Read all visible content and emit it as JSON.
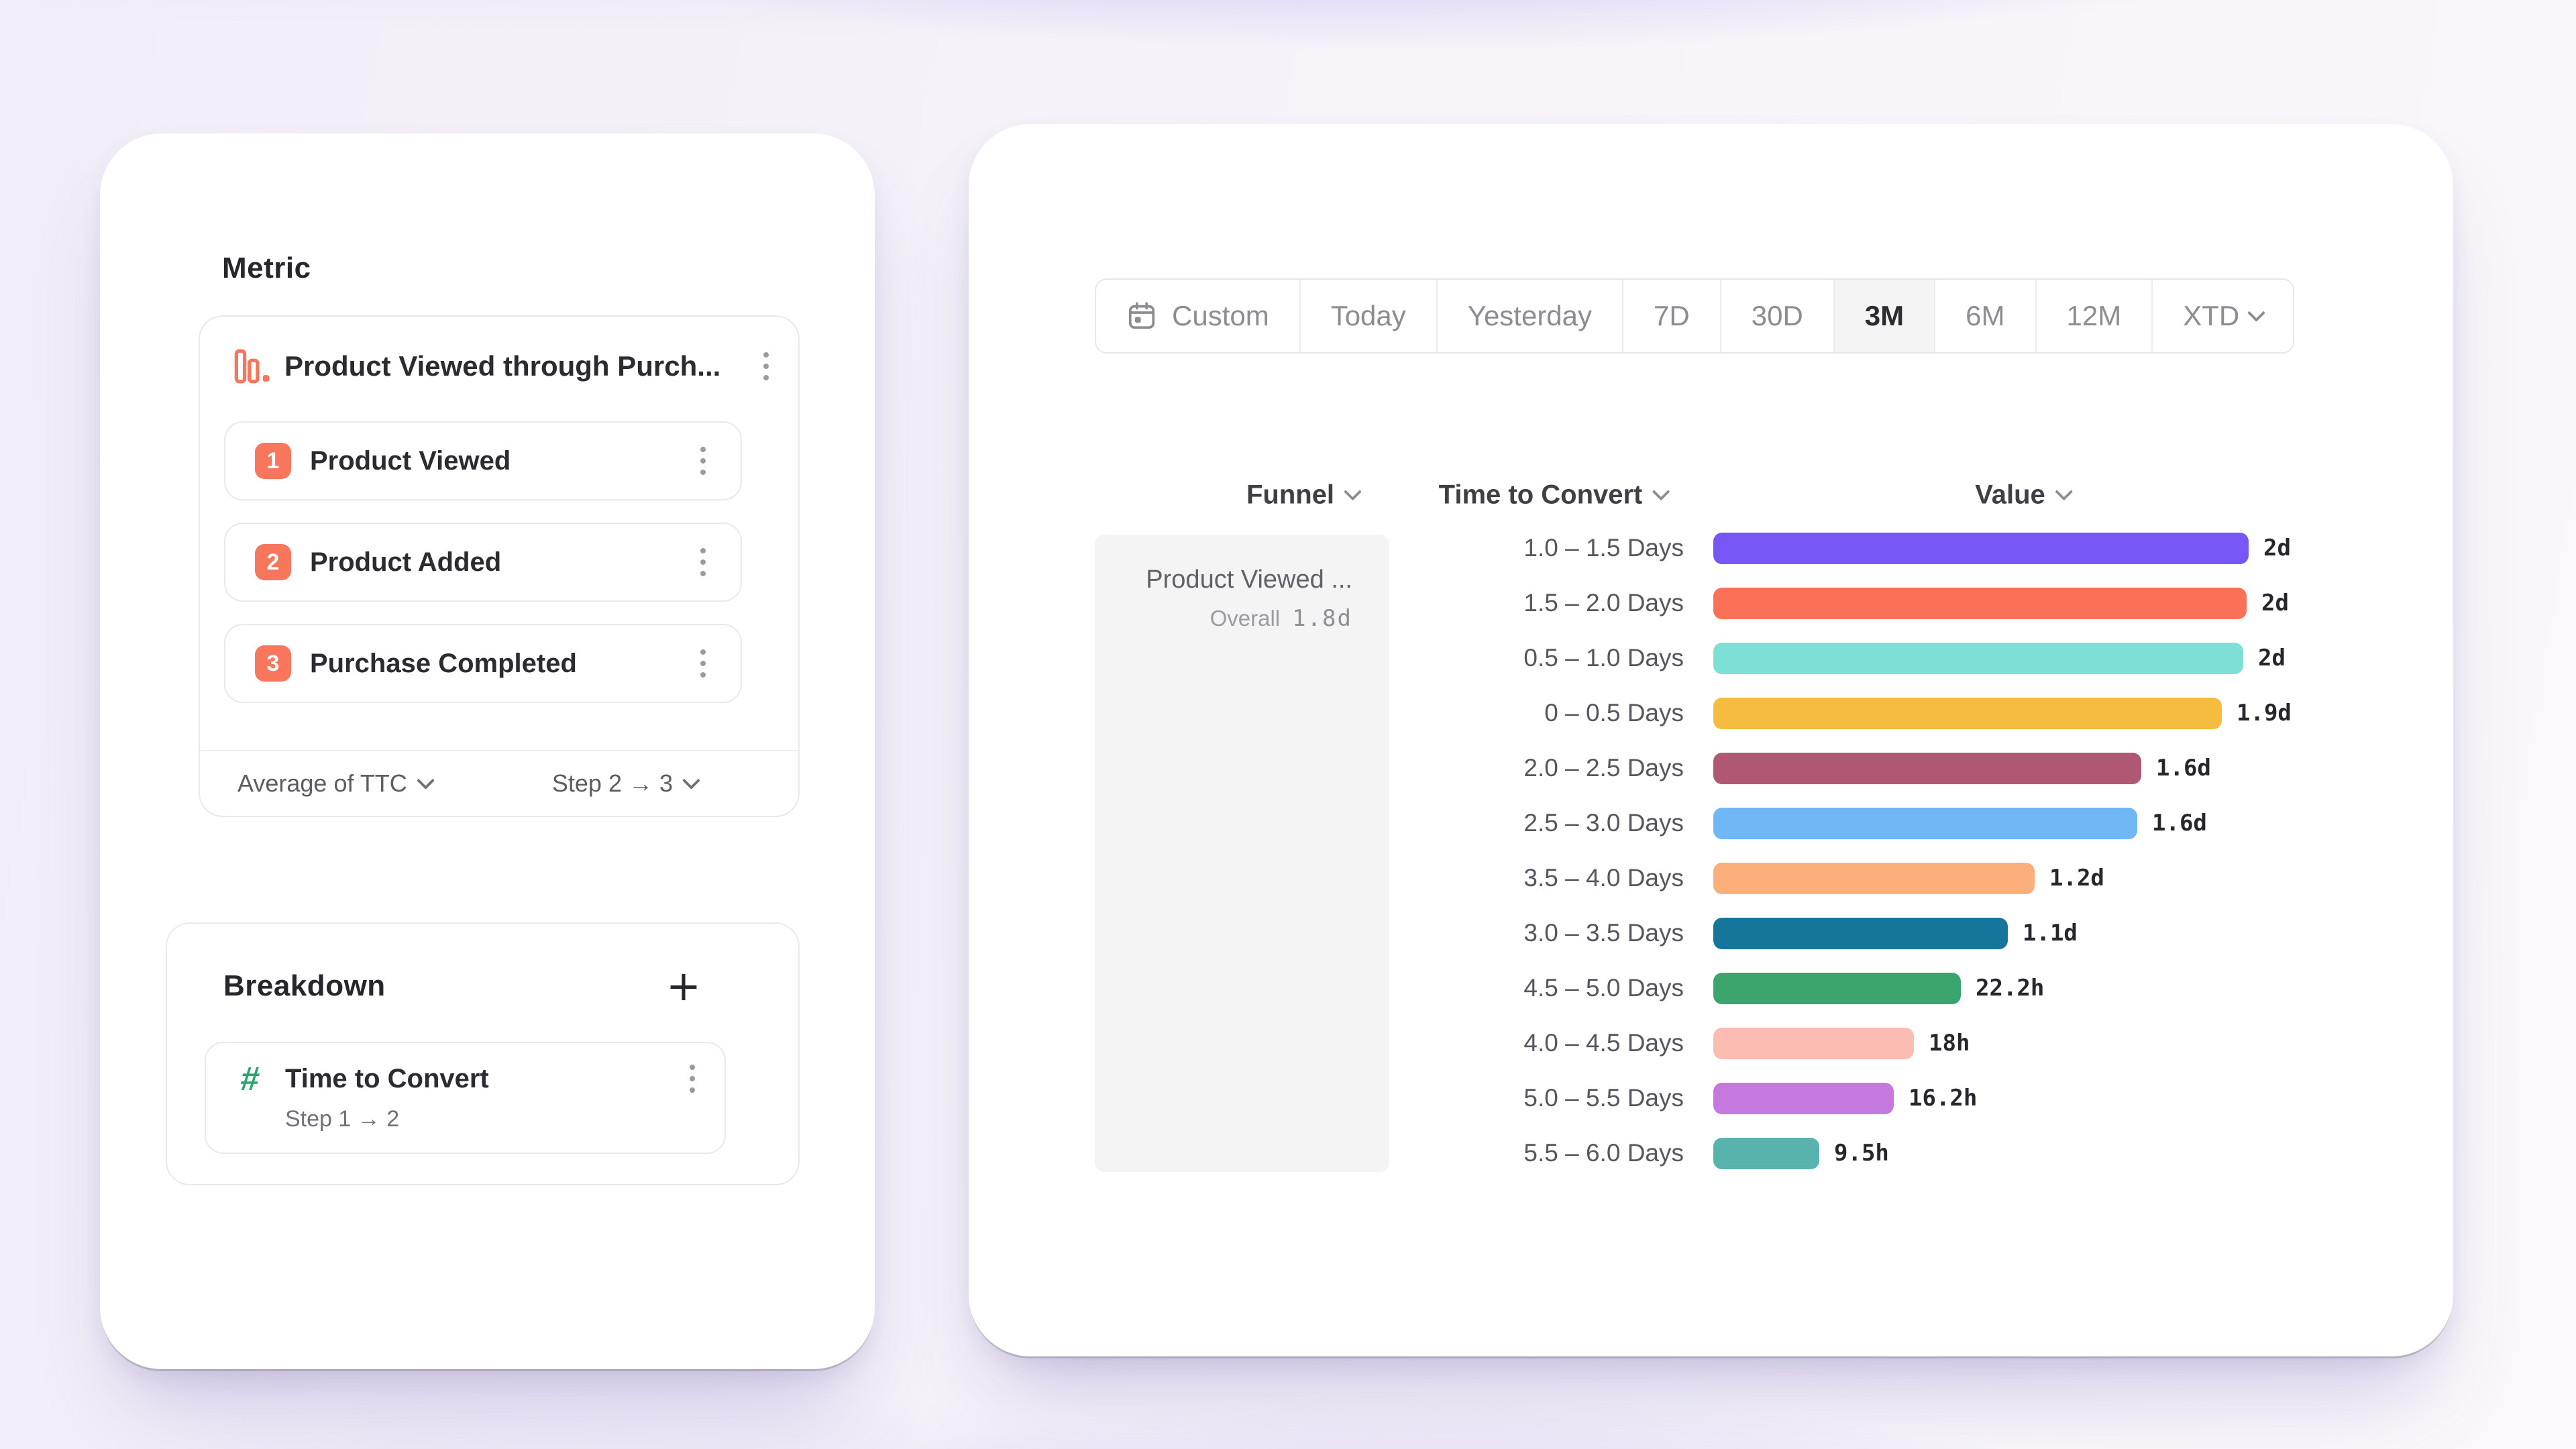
{
  "theme": {
    "badge_color": "#F8765C",
    "hash_color": "#2CA56E",
    "funnel_icon_color": "#F8765C",
    "selected_segment_bg": "#F4F4F5",
    "funnel_cell_bg": "#F4F4F5"
  },
  "left_panel": {
    "metric": {
      "title": "Metric",
      "funnel": {
        "name": "Product Viewed through Purch...",
        "steps": [
          {
            "number": "1",
            "label": "Product Viewed"
          },
          {
            "number": "2",
            "label": "Product Added"
          },
          {
            "number": "3",
            "label": "Purchase Completed"
          }
        ],
        "footer_left": "Average of TTC",
        "footer_right": "Step 2 → 3"
      }
    },
    "breakdown": {
      "title": "Breakdown",
      "add_label": "+",
      "item": {
        "name": "Time to Convert",
        "subtitle": "Step 1 → 2"
      }
    }
  },
  "right_panel": {
    "date_ranges": [
      "Custom",
      "Today",
      "Yesterday",
      "7D",
      "30D",
      "3M",
      "6M",
      "12M",
      "XTD"
    ],
    "selected_range": "3M"
  },
  "chart_data": {
    "type": "bar",
    "orientation": "horizontal",
    "columns": [
      "Funnel",
      "Time to Convert",
      "Value"
    ],
    "funnel_name": "Product Viewed ...",
    "overall_label": "Overall",
    "overall_value": "1.8d",
    "categories": [
      "1.0 – 1.5 Days",
      "1.5 – 2.0 Days",
      "0.5 – 1.0 Days",
      "0 – 0.5 Days",
      "2.0 – 2.5 Days",
      "2.5 – 3.0 Days",
      "3.5 – 4.0 Days",
      "3.0 – 3.5 Days",
      "4.5 – 5.0 Days",
      "4.0 – 4.5 Days",
      "5.0 – 5.5 Days",
      "5.5 – 6.0 Days"
    ],
    "values_hours": [
      48,
      47.8,
      47.5,
      45.6,
      38.4,
      38,
      28.8,
      26.4,
      22.2,
      18,
      16.2,
      9.5
    ],
    "value_labels": [
      "2d",
      "2d",
      "2d",
      "1.9d",
      "1.6d",
      "1.6d",
      "1.2d",
      "1.1d",
      "22.2h",
      "18h",
      "16.2h",
      "9.5h"
    ],
    "bar_colors": [
      "#7656F5",
      "#FB7158",
      "#7EDFD6",
      "#F6BC40",
      "#B05873",
      "#6FB8F5",
      "#FCAF7B",
      "#15759B",
      "#3CA46E",
      "#FCBCB2",
      "#C579DF",
      "#58B3AE"
    ],
    "x_max_hours": 48,
    "grid": false,
    "legend": false
  }
}
